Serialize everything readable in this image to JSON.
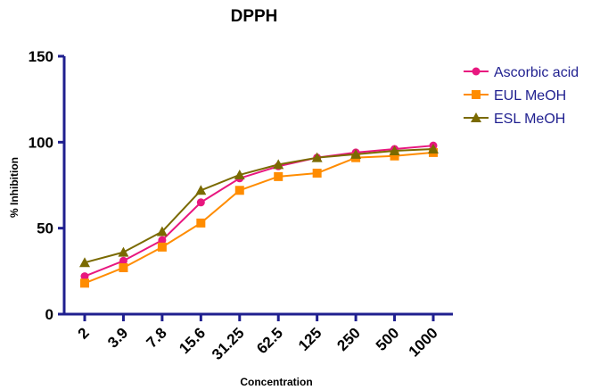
{
  "chart_data": {
    "type": "line",
    "title": "DPPH",
    "xlabel": "Concentration",
    "ylabel": "% Inhibition",
    "categories": [
      "2",
      "3.9",
      "7.8",
      "15.6",
      "31.25",
      "62.5",
      "125",
      "250",
      "500",
      "1000"
    ],
    "ylim": [
      0,
      150
    ],
    "yticks": [
      0,
      50,
      100,
      150
    ],
    "grid": false,
    "legend_position": "top-right",
    "series": [
      {
        "name": "Ascorbic acid",
        "color": "#e8177f",
        "marker": "circle",
        "values": [
          22,
          31,
          43,
          65,
          79,
          86,
          91,
          94,
          96,
          98
        ]
      },
      {
        "name": "EUL MeOH",
        "color": "#ff8c00",
        "marker": "square",
        "values": [
          18,
          27,
          39,
          53,
          72,
          80,
          82,
          91,
          92,
          94
        ]
      },
      {
        "name": "ESL MeOH",
        "color": "#7a6a00",
        "marker": "triangle",
        "values": [
          30,
          36,
          48,
          72,
          81,
          87,
          91,
          93,
          95,
          96
        ]
      }
    ],
    "axis_color": "#1f1f8f"
  }
}
